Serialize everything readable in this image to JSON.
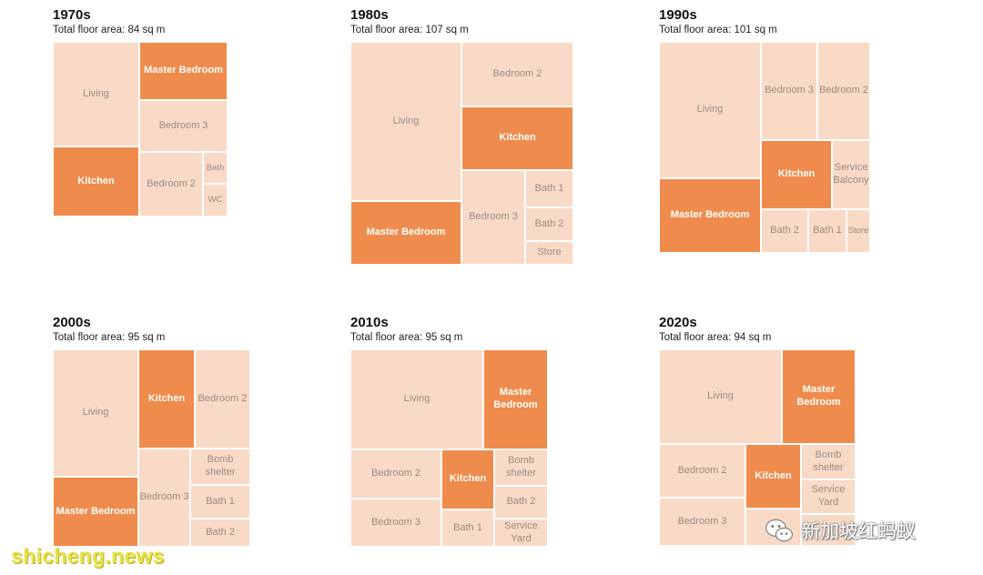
{
  "colors": {
    "living_room": "#f9dac6",
    "highlight": "#ef8b4c",
    "light_text": "#9b8a80",
    "dark_text": "#ffffff"
  },
  "chart_data": [
    {
      "type": "treemap",
      "title": "1970s",
      "subtitle": "Total floor area: 84 sq m",
      "rooms": [
        {
          "label": "Living",
          "highlight": false
        },
        {
          "label": "Master Bedroom",
          "highlight": true
        },
        {
          "label": "Bedroom 3",
          "highlight": false
        },
        {
          "label": "Kitchen",
          "highlight": true
        },
        {
          "label": "Bedroom 2",
          "highlight": false
        },
        {
          "label": "Bath",
          "highlight": false
        },
        {
          "label": "WC",
          "highlight": false
        }
      ]
    },
    {
      "type": "treemap",
      "title": "1980s",
      "subtitle": "Total floor area: 107 sq m",
      "rooms": [
        {
          "label": "Living",
          "highlight": false
        },
        {
          "label": "Bedroom 2",
          "highlight": false
        },
        {
          "label": "Kitchen",
          "highlight": true
        },
        {
          "label": "Master Bedroom",
          "highlight": true
        },
        {
          "label": "Bedroom 3",
          "highlight": false
        },
        {
          "label": "Bath 1",
          "highlight": false
        },
        {
          "label": "Bath 2",
          "highlight": false
        },
        {
          "label": "Store",
          "highlight": false
        }
      ]
    },
    {
      "type": "treemap",
      "title": "1990s",
      "subtitle": "Total floor area: 101 sq m",
      "rooms": [
        {
          "label": "Living",
          "highlight": false
        },
        {
          "label": "Bedroom 3",
          "highlight": false
        },
        {
          "label": "Bedroom 2",
          "highlight": false
        },
        {
          "label": "Kitchen",
          "highlight": true
        },
        {
          "label": "Service\nBalcony",
          "highlight": false
        },
        {
          "label": "Master Bedroom",
          "highlight": true
        },
        {
          "label": "Bath 2",
          "highlight": false
        },
        {
          "label": "Bath 1",
          "highlight": false
        },
        {
          "label": "Store",
          "highlight": false
        }
      ]
    },
    {
      "type": "treemap",
      "title": "2000s",
      "subtitle": "Total floor area: 95 sq m",
      "rooms": [
        {
          "label": "Living",
          "highlight": false
        },
        {
          "label": "Kitchen",
          "highlight": true
        },
        {
          "label": "Bedroom 2",
          "highlight": false
        },
        {
          "label": "Master Bedroom",
          "highlight": true
        },
        {
          "label": "Bedroom 3",
          "highlight": false
        },
        {
          "label": "Bomb\nshelter",
          "highlight": false
        },
        {
          "label": "Bath 1",
          "highlight": false
        },
        {
          "label": "Bath 2",
          "highlight": false
        }
      ]
    },
    {
      "type": "treemap",
      "title": "2010s",
      "subtitle": "Total floor area: 95 sq m",
      "rooms": [
        {
          "label": "Living",
          "highlight": false
        },
        {
          "label": "Master\nBedroom",
          "highlight": true
        },
        {
          "label": "Bedroom 2",
          "highlight": false
        },
        {
          "label": "Kitchen",
          "highlight": true
        },
        {
          "label": "Bomb\nshelter",
          "highlight": false
        },
        {
          "label": "Bedroom 3",
          "highlight": false
        },
        {
          "label": "Bath 1",
          "highlight": false
        },
        {
          "label": "Bath 2",
          "highlight": false
        },
        {
          "label": "Service\nYard",
          "highlight": false
        }
      ]
    },
    {
      "type": "treemap",
      "title": "2020s",
      "subtitle": "Total floor area: 94 sq m",
      "rooms": [
        {
          "label": "Living",
          "highlight": false
        },
        {
          "label": "Master\nBedroom",
          "highlight": true
        },
        {
          "label": "Bedroom 2",
          "highlight": false
        },
        {
          "label": "Kitchen",
          "highlight": true
        },
        {
          "label": "Bomb\nshelter",
          "highlight": false
        },
        {
          "label": "Service\nYard",
          "highlight": false
        },
        {
          "label": "Bedroom 3",
          "highlight": false
        },
        {
          "label": "",
          "highlight": false
        },
        {
          "label": "",
          "highlight": false
        }
      ]
    }
  ],
  "watermarks": {
    "site": "shicheng.news",
    "wechat_icon": "wechat-icon",
    "account": "新加坡红蚂蚁"
  }
}
